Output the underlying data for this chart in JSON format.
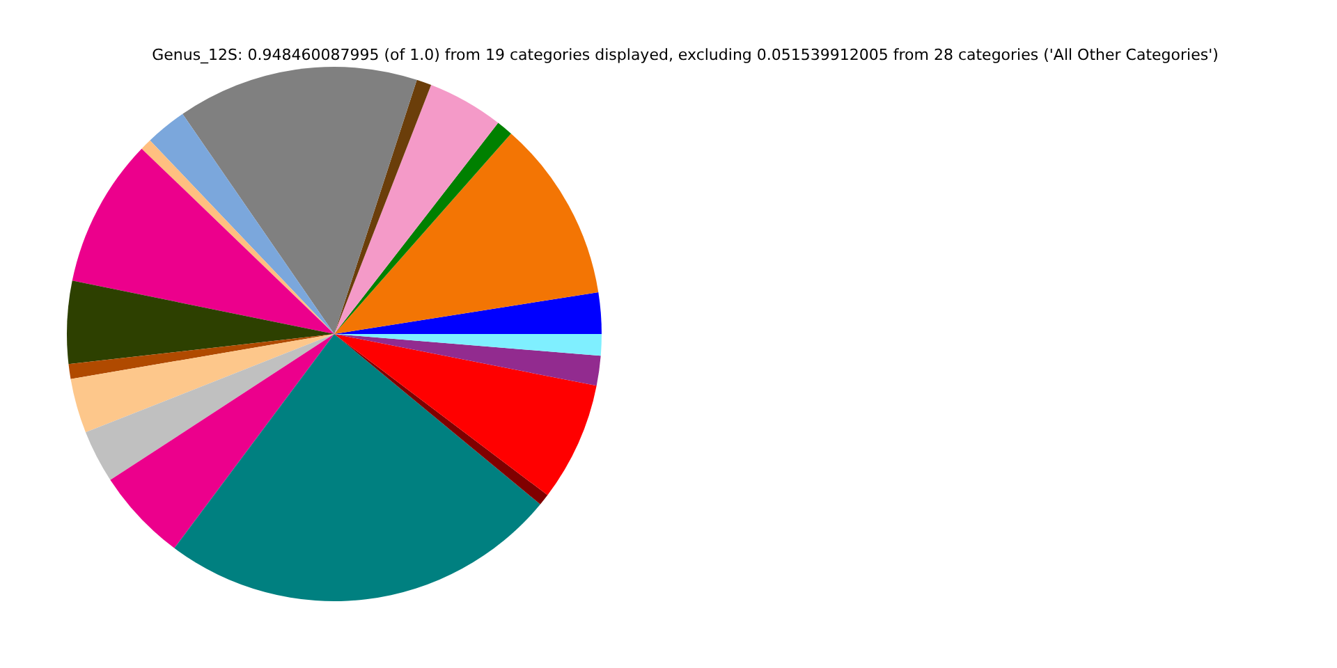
{
  "chart_data": {
    "type": "pie",
    "title": "Genus_12S: 0.948460087995 (of 1.0) from 19 categories displayed, excluding 0.051539912005 from 28 categories ('All Other Categories')",
    "categories": [
      null,
      null,
      null,
      null,
      null,
      null,
      null,
      null,
      null,
      null,
      null,
      null,
      null,
      null,
      null,
      null,
      null,
      null,
      null
    ],
    "values": [
      2.5,
      11.0,
      1.0,
      4.6,
      0.9,
      14.6,
      2.5,
      0.7,
      9.0,
      5.0,
      0.9,
      3.3,
      3.2,
      5.6,
      24.2,
      0.7,
      7.2,
      1.8,
      1.3
    ],
    "colors": [
      "#0000ff",
      "#f37504",
      "#008000",
      "#f49ac8",
      "#6b3e0a",
      "#808080",
      "#7ba7dc",
      "#ffbf80",
      "#ec008c",
      "#2d4000",
      "#b04a00",
      "#fdc78b",
      "#c0c0c0",
      "#ec008c",
      "#008080",
      "#800000",
      "#ff0000",
      "#922b8f",
      "#7fefff"
    ]
  }
}
